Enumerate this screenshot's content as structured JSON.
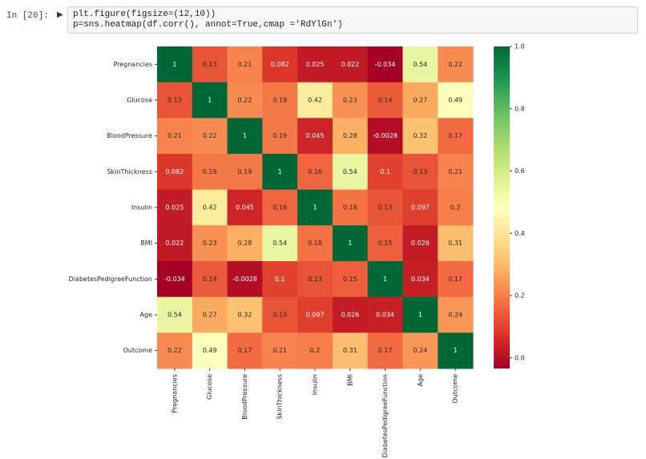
{
  "cell": {
    "prompt": "In [20]:",
    "code": [
      "plt.figure(figsize=(12,10))",
      "p=sns.heatmap(df.corr(), annot=True,cmap ='RdYlGn')"
    ]
  },
  "chart_data": {
    "type": "heatmap",
    "x": [
      "Pregnancies",
      "Glucose",
      "BloodPressure",
      "SkinThickness",
      "Insulin",
      "BMI",
      "DiabetesPedigreeFunction",
      "Age",
      "Outcome"
    ],
    "y": [
      "Pregnancies",
      "Glucose",
      "BloodPressure",
      "SkinThickness",
      "Insulin",
      "BMI",
      "DiabetesPedigreeFunction",
      "Age",
      "Outcome"
    ],
    "z": [
      [
        1,
        0.13,
        0.21,
        0.082,
        0.025,
        0.022,
        -0.034,
        0.54,
        0.22
      ],
      [
        0.13,
        1,
        0.22,
        0.19,
        0.42,
        0.23,
        0.14,
        0.27,
        0.49
      ],
      [
        0.21,
        0.22,
        1,
        0.19,
        0.045,
        0.28,
        -0.0028,
        0.32,
        0.17
      ],
      [
        0.082,
        0.19,
        0.19,
        1,
        0.16,
        0.54,
        0.1,
        0.13,
        0.21
      ],
      [
        0.025,
        0.42,
        0.045,
        0.16,
        1,
        0.18,
        0.13,
        0.097,
        0.2
      ],
      [
        0.022,
        0.23,
        0.28,
        0.54,
        0.18,
        1,
        0.15,
        0.026,
        0.31
      ],
      [
        -0.034,
        0.14,
        -0.0028,
        0.1,
        0.13,
        0.15,
        1,
        0.034,
        0.17
      ],
      [
        0.54,
        0.27,
        0.32,
        0.13,
        0.097,
        0.026,
        0.034,
        1,
        0.24
      ],
      [
        0.22,
        0.49,
        0.17,
        0.21,
        0.2,
        0.31,
        0.17,
        0.24,
        1
      ]
    ],
    "zlim": [
      -0.034,
      1
    ],
    "zticks": [
      {
        "value": 0,
        "label": "0.0"
      },
      0.2,
      0.4,
      0.6,
      0.8,
      {
        "value": 1,
        "label": "1.0"
      }
    ],
    "colors": [
      "#a50026",
      "#d73027",
      "#f46d43",
      "#fdae61",
      "#fee08b",
      "#ffffbf",
      "#d9ef8b",
      "#a6d96a",
      "#66bd63",
      "#1a9850",
      "#006837"
    ]
  }
}
